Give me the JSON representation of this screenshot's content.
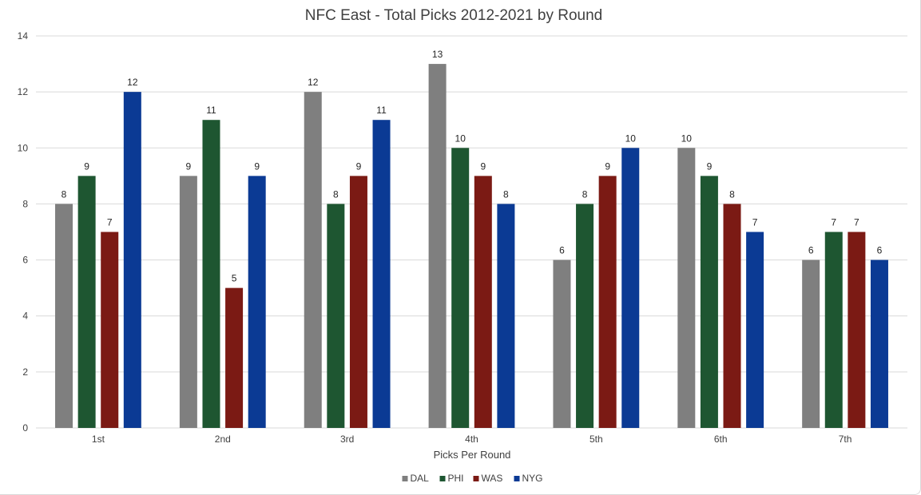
{
  "chart_data": {
    "type": "bar",
    "title": "NFC East - Total Picks 2012-2021 by Round",
    "xlabel": "Picks Per Round",
    "ylabel": "",
    "categories": [
      "1st",
      "2nd",
      "3rd",
      "4th",
      "5th",
      "6th",
      "7th"
    ],
    "ylim": [
      0,
      14
    ],
    "yticks": [
      0,
      2,
      4,
      6,
      8,
      10,
      12,
      14
    ],
    "grid": true,
    "legend_position": "bottom",
    "series": [
      {
        "name": "DAL",
        "color": "#7f7f7f",
        "values": [
          8,
          9,
          12,
          13,
          6,
          10,
          6
        ]
      },
      {
        "name": "PHI",
        "color": "#1e5631",
        "values": [
          9,
          11,
          8,
          10,
          8,
          9,
          7
        ]
      },
      {
        "name": "WAS",
        "color": "#7b1a14",
        "values": [
          7,
          5,
          9,
          9,
          9,
          8,
          7
        ]
      },
      {
        "name": "NYG",
        "color": "#0b3a94",
        "values": [
          12,
          9,
          11,
          8,
          10,
          7,
          6
        ]
      }
    ]
  }
}
